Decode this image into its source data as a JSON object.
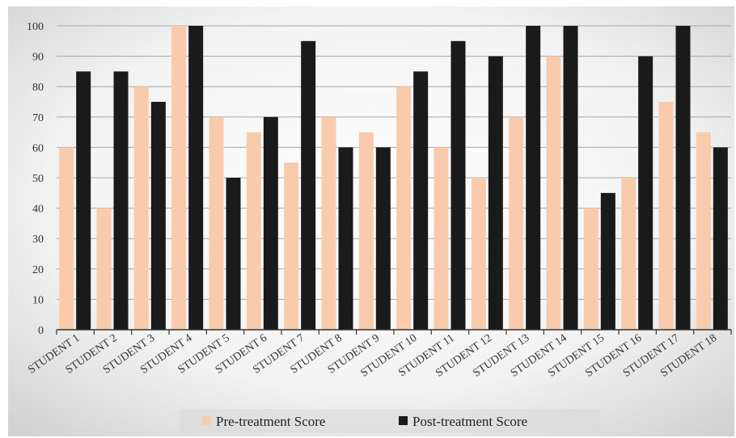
{
  "chart_data": {
    "type": "bar",
    "title": "",
    "xlabel": "",
    "ylabel": "",
    "ylim": [
      0,
      100
    ],
    "yticks": [
      0,
      10,
      20,
      30,
      40,
      50,
      60,
      70,
      80,
      90,
      100
    ],
    "grid": true,
    "legend_position": "bottom",
    "categories": [
      "STUDENT 1",
      "STUDENT 2",
      "STUDENT 3",
      "STUDENT 4",
      "STUDENT 5",
      "STUDENT 6",
      "STUDENT 7",
      "STUDENT 8",
      "STUDENT 9",
      "STUDENT 10",
      "STUDENT 11",
      "STUDENT 12",
      "STUDENT 13",
      "STUDENT 14",
      "STUDENT 15",
      "STUDENT 16",
      "STUDENT 17",
      "STUDENT 18"
    ],
    "series": [
      {
        "name": "Pre-treatment Score",
        "color": "#f8cbad",
        "values": [
          60,
          40,
          80,
          100,
          70,
          65,
          55,
          70,
          65,
          80,
          60,
          50,
          70,
          90,
          40,
          50,
          75,
          65
        ]
      },
      {
        "name": "Post-treatment Score",
        "color": "#1a1a1a",
        "values": [
          85,
          85,
          75,
          100,
          50,
          70,
          95,
          60,
          60,
          85,
          95,
          90,
          100,
          100,
          45,
          90,
          100,
          60
        ]
      }
    ]
  }
}
